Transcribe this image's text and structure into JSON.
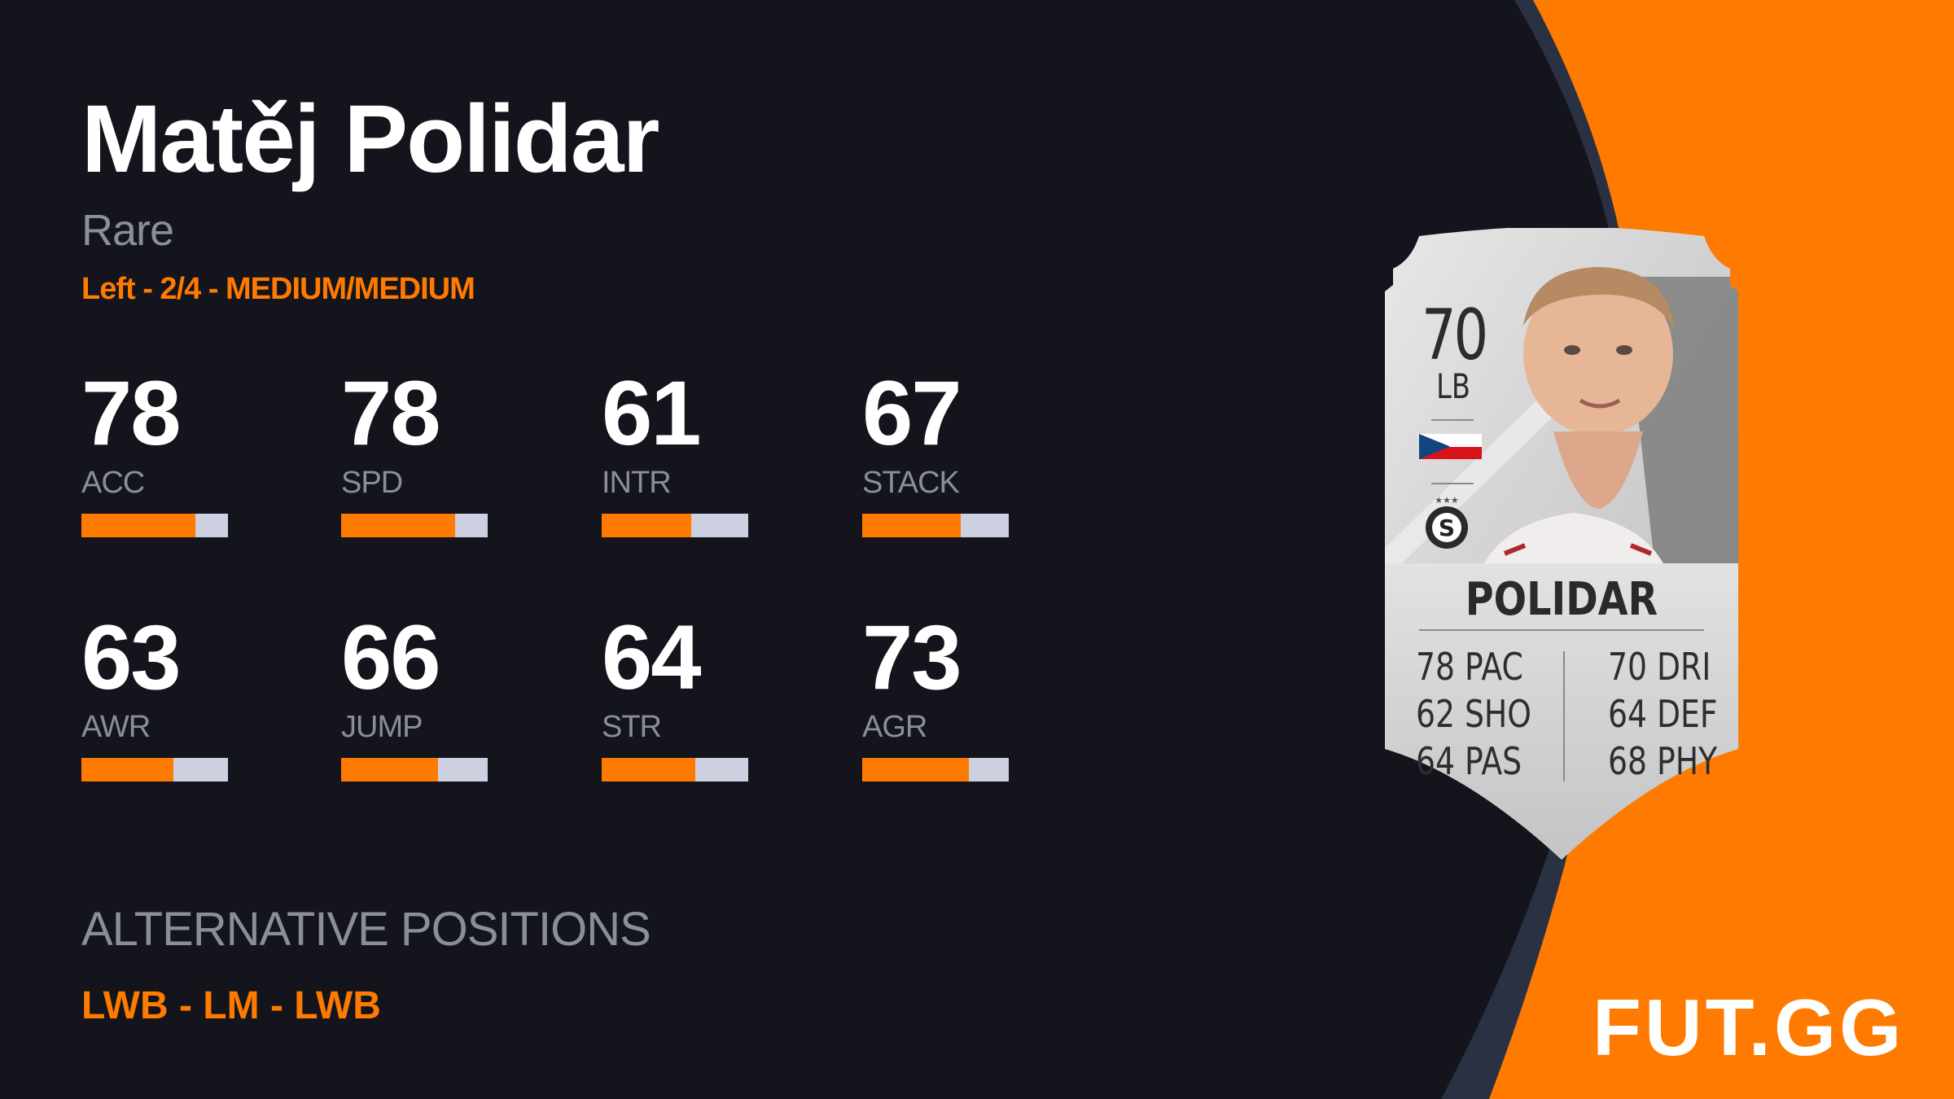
{
  "player": {
    "name": "Matěj Polidar",
    "rarity": "Rare",
    "info": "Left - 2/4 - MEDIUM/MEDIUM"
  },
  "stats": [
    {
      "label": "ACC",
      "value": "78",
      "fraction": 0.78
    },
    {
      "label": "SPD",
      "value": "78",
      "fraction": 0.78
    },
    {
      "label": "INTR",
      "value": "61",
      "fraction": 0.61
    },
    {
      "label": "STACK",
      "value": "67",
      "fraction": 0.67
    },
    {
      "label": "AWR",
      "value": "63",
      "fraction": 0.63
    },
    {
      "label": "JUMP",
      "value": "66",
      "fraction": 0.66
    },
    {
      "label": "STR",
      "value": "64",
      "fraction": 0.64
    },
    {
      "label": "AGR",
      "value": "73",
      "fraction": 0.73
    }
  ],
  "alternative_positions": {
    "title": "ALTERNATIVE POSITIONS",
    "value": "LWB - LM - LWB"
  },
  "card": {
    "rating": "70",
    "position": "LB",
    "name": "POLIDAR",
    "nation_icon": "czech-flag",
    "club_icon": "sparta-praha-badge",
    "left_stats": [
      "78 PAC",
      "62 SHO",
      "64 PAS"
    ],
    "right_stats": [
      "70 DRI",
      "64 DEF",
      "68 PHY"
    ]
  },
  "logo": "FUT.GG",
  "colors": {
    "accent": "#ff7a00",
    "background": "#13141c",
    "bar_track": "#cdd0e0",
    "muted_text": "#8b8e9a"
  }
}
